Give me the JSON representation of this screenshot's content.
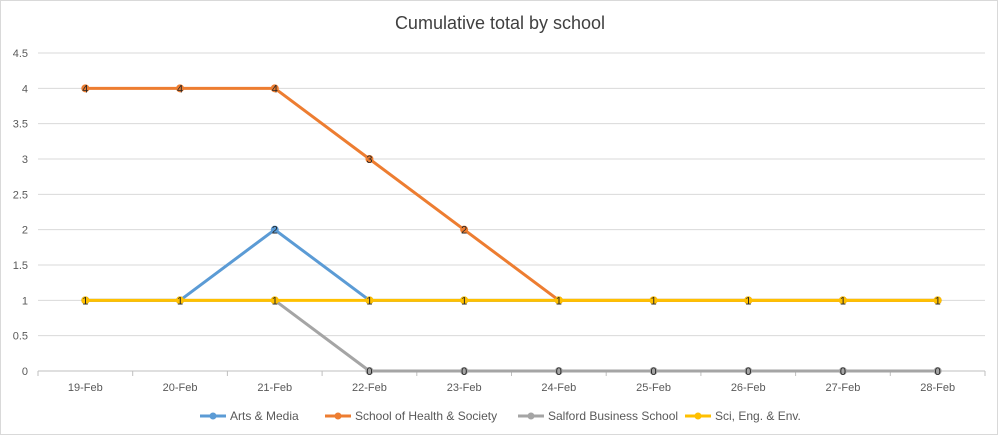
{
  "chart_data": {
    "type": "line",
    "title": "Cumulative total by school",
    "xlabel": "",
    "ylabel": "",
    "categories": [
      "19-Feb",
      "20-Feb",
      "21-Feb",
      "22-Feb",
      "23-Feb",
      "24-Feb",
      "25-Feb",
      "26-Feb",
      "27-Feb",
      "28-Feb"
    ],
    "ylim": [
      0,
      4.5
    ],
    "yticks": [
      "0",
      "0.5",
      "1",
      "1.5",
      "2",
      "2.5",
      "3",
      "3.5",
      "4",
      "4.5"
    ],
    "grid": true,
    "legend_position": "bottom",
    "series": [
      {
        "name": "Arts & Media",
        "color": "#5b9bd5",
        "values": [
          1,
          1,
          2,
          1,
          1,
          1,
          1,
          1,
          1,
          1
        ],
        "labels": [
          false,
          false,
          true,
          false,
          false,
          false,
          false,
          false,
          false,
          false
        ]
      },
      {
        "name": "School of Health & Society",
        "color": "#ed7d31",
        "values": [
          4,
          4,
          4,
          3,
          2,
          1,
          1,
          1,
          1,
          1
        ],
        "labels": [
          true,
          true,
          true,
          true,
          true,
          false,
          false,
          false,
          false,
          false
        ]
      },
      {
        "name": "Salford Business School",
        "color": "#a5a5a5",
        "values": [
          1,
          1,
          1,
          0,
          0,
          0,
          0,
          0,
          0,
          0
        ],
        "labels": [
          false,
          false,
          false,
          true,
          true,
          true,
          true,
          true,
          true,
          true
        ]
      },
      {
        "name": "Sci, Eng. & Env.",
        "color": "#ffc000",
        "values": [
          1,
          1,
          1,
          1,
          1,
          1,
          1,
          1,
          1,
          1
        ],
        "labels": [
          true,
          true,
          true,
          true,
          true,
          true,
          true,
          true,
          true,
          true
        ]
      }
    ]
  }
}
